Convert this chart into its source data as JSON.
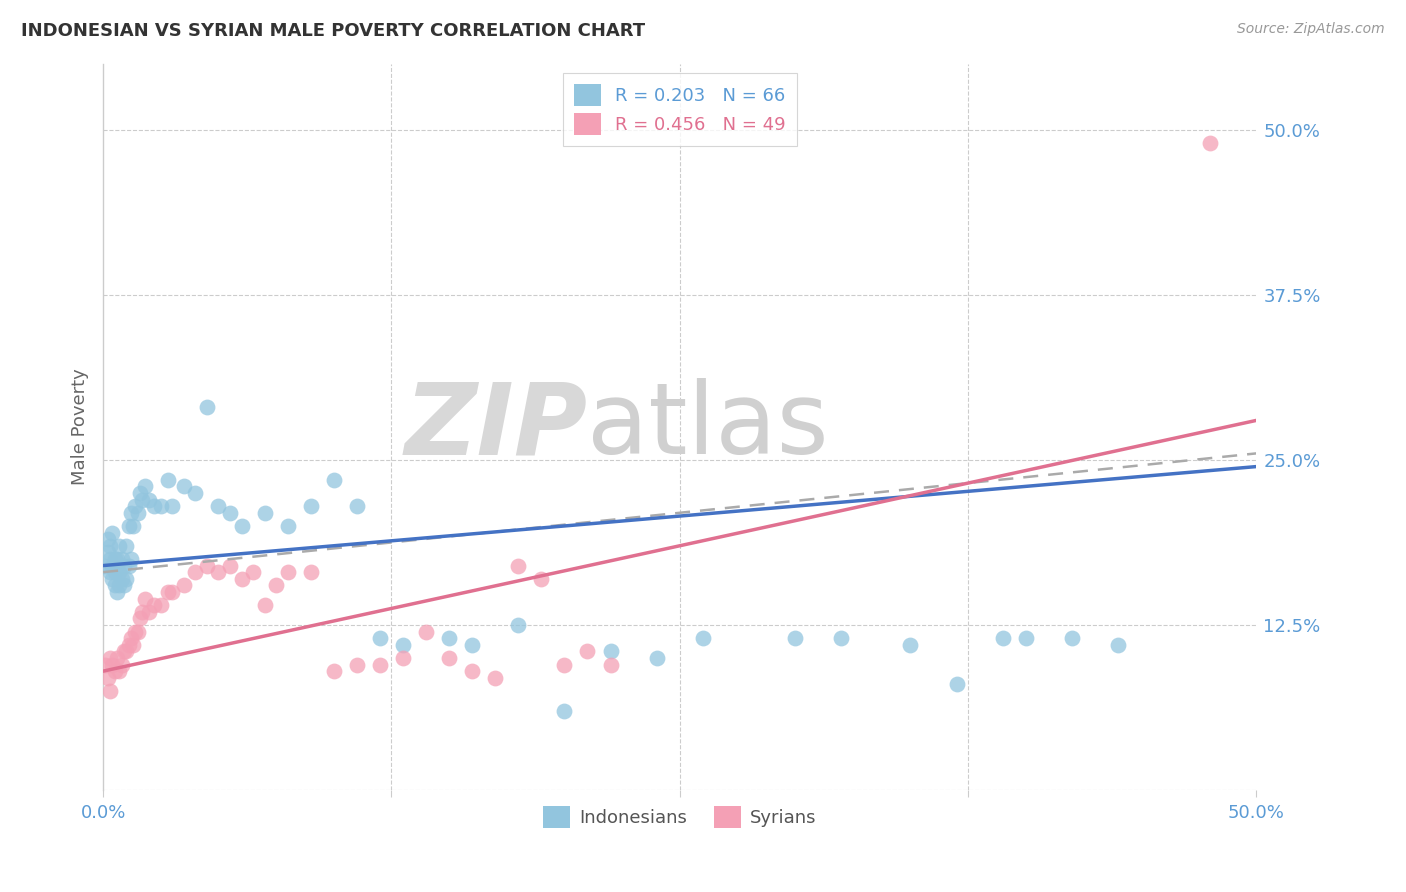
{
  "title": "INDONESIAN VS SYRIAN MALE POVERTY CORRELATION CHART",
  "source": "Source: ZipAtlas.com",
  "ylabel": "Male Poverty",
  "legend_label_indonesians": "Indonesians",
  "legend_label_syrians": "Syrians",
  "legend_indo": "R = 0.203   N = 66",
  "legend_syr": "R = 0.456   N = 49",
  "color_indonesian": "#92c5de",
  "color_syrian": "#f4a0b5",
  "color_blue_text": "#5b9bd5",
  "color_pink_text": "#e07090",
  "color_blue_line": "#4472C4",
  "color_pink_line": "#e07090",
  "color_dashed": "#aaaaaa",
  "watermark_zip": "ZIP",
  "watermark_atlas": "atlas",
  "indonesian_x": [
    0.001,
    0.002,
    0.002,
    0.003,
    0.003,
    0.003,
    0.004,
    0.004,
    0.004,
    0.005,
    0.005,
    0.005,
    0.006,
    0.006,
    0.007,
    0.007,
    0.007,
    0.008,
    0.008,
    0.009,
    0.009,
    0.01,
    0.01,
    0.011,
    0.011,
    0.012,
    0.012,
    0.013,
    0.014,
    0.015,
    0.016,
    0.017,
    0.018,
    0.02,
    0.022,
    0.025,
    0.028,
    0.03,
    0.035,
    0.04,
    0.045,
    0.05,
    0.055,
    0.06,
    0.07,
    0.08,
    0.09,
    0.1,
    0.11,
    0.12,
    0.13,
    0.15,
    0.16,
    0.18,
    0.2,
    0.22,
    0.24,
    0.26,
    0.3,
    0.32,
    0.35,
    0.37,
    0.39,
    0.4,
    0.42,
    0.44
  ],
  "indonesian_y": [
    0.17,
    0.18,
    0.19,
    0.165,
    0.175,
    0.185,
    0.16,
    0.17,
    0.195,
    0.155,
    0.165,
    0.175,
    0.15,
    0.175,
    0.155,
    0.165,
    0.185,
    0.16,
    0.175,
    0.155,
    0.17,
    0.16,
    0.185,
    0.17,
    0.2,
    0.175,
    0.21,
    0.2,
    0.215,
    0.21,
    0.225,
    0.22,
    0.23,
    0.22,
    0.215,
    0.215,
    0.235,
    0.215,
    0.23,
    0.225,
    0.29,
    0.215,
    0.21,
    0.2,
    0.21,
    0.2,
    0.215,
    0.235,
    0.215,
    0.115,
    0.11,
    0.115,
    0.11,
    0.125,
    0.06,
    0.105,
    0.1,
    0.115,
    0.115,
    0.115,
    0.11,
    0.08,
    0.115,
    0.115,
    0.115,
    0.11
  ],
  "syrian_x": [
    0.001,
    0.002,
    0.003,
    0.003,
    0.004,
    0.005,
    0.006,
    0.007,
    0.008,
    0.009,
    0.01,
    0.011,
    0.012,
    0.013,
    0.014,
    0.015,
    0.016,
    0.017,
    0.018,
    0.02,
    0.022,
    0.025,
    0.028,
    0.03,
    0.035,
    0.04,
    0.045,
    0.05,
    0.055,
    0.06,
    0.065,
    0.07,
    0.075,
    0.08,
    0.09,
    0.1,
    0.11,
    0.12,
    0.13,
    0.14,
    0.15,
    0.16,
    0.17,
    0.18,
    0.19,
    0.2,
    0.21,
    0.22,
    0.48
  ],
  "syrian_y": [
    0.095,
    0.085,
    0.075,
    0.1,
    0.095,
    0.09,
    0.1,
    0.09,
    0.095,
    0.105,
    0.105,
    0.11,
    0.115,
    0.11,
    0.12,
    0.12,
    0.13,
    0.135,
    0.145,
    0.135,
    0.14,
    0.14,
    0.15,
    0.15,
    0.155,
    0.165,
    0.17,
    0.165,
    0.17,
    0.16,
    0.165,
    0.14,
    0.155,
    0.165,
    0.165,
    0.09,
    0.095,
    0.095,
    0.1,
    0.12,
    0.1,
    0.09,
    0.085,
    0.17,
    0.16,
    0.095,
    0.105,
    0.095,
    0.49
  ],
  "xlim": [
    0.0,
    0.5
  ],
  "ylim": [
    0.0,
    0.55
  ],
  "y_ticks": [
    0.0,
    0.125,
    0.25,
    0.375,
    0.5
  ],
  "y_tick_labels": [
    "",
    "12.5%",
    "25.0%",
    "37.5%",
    "50.0%"
  ],
  "x_ticks": [
    0.0,
    0.125,
    0.25,
    0.375,
    0.5
  ],
  "x_tick_labels": [
    "0.0%",
    "",
    "",
    "",
    "50.0%"
  ],
  "background_color": "#ffffff",
  "grid_color": "#cccccc"
}
